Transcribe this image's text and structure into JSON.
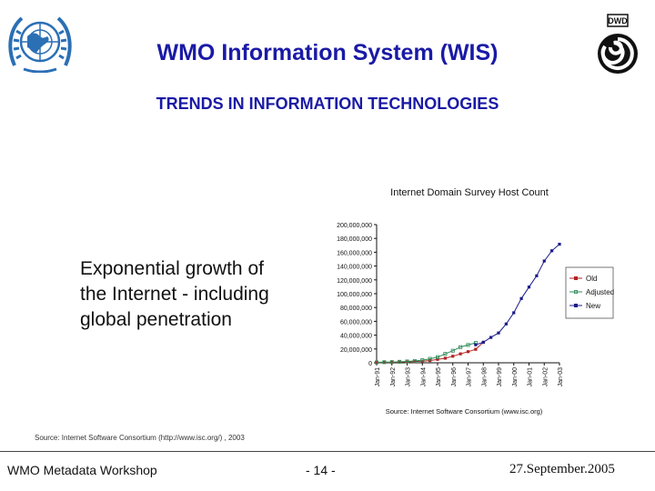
{
  "header": {
    "title": "WMO Information System (WIS)",
    "subtitle": "TRENDS IN INFORMATION TECHNOLOGIES",
    "left_logo_icon": "wmo-emblem-icon",
    "right_logo_icon": "dwd-logo-icon",
    "right_logo_text": "DWD"
  },
  "body_text": [
    "Exponential growth of",
    "the Internet - including",
    "global penetration"
  ],
  "source_note": "Source: Internet Software Consortium (http://www.isc.org/) , 2003",
  "footer": {
    "left": "WMO Metadata Workshop",
    "center": "- 14 -",
    "right": "27.September.2005"
  },
  "chart_data": {
    "type": "line",
    "title": "Internet Domain Survey Host Count",
    "source": "Source: Internet Software Consortium (www.isc.org)",
    "ylim": [
      0,
      200000000
    ],
    "y_ticks": [
      "0",
      "20,000,000",
      "40,000,000",
      "60,000,000",
      "80,000,000",
      "100,000,000",
      "120,000,000",
      "140,000,000",
      "160,000,000",
      "180,000,000",
      "200,000,000"
    ],
    "x_ticks": [
      "Jan-91",
      "Jan-92",
      "Jan-93",
      "Jan-94",
      "Jan-95",
      "Jan-96",
      "Jan-97",
      "Jan-98",
      "Jan-99",
      "Jan-00",
      "Jan-01",
      "Jan-02",
      "Jan-03"
    ],
    "xlim": [
      1991,
      2003
    ],
    "legend_position": "right",
    "colors": {
      "Old": "#b22222",
      "Adjusted": "#2e8b57",
      "New": "#1a1a8c"
    },
    "series": [
      {
        "name": "Old",
        "x": [
          1991.0,
          1991.5,
          1992.0,
          1992.5,
          1993.0,
          1993.5,
          1994.0,
          1994.5,
          1995.0,
          1995.5,
          1996.0,
          1996.5,
          1997.0,
          1997.5,
          1998.0
        ],
        "values": [
          400000,
          500000,
          700000,
          1000000,
          1300000,
          1800000,
          2200000,
          3200000,
          4900000,
          6600000,
          9500000,
          12900000,
          16100000,
          19500000,
          29700000
        ]
      },
      {
        "name": "Adjusted",
        "x": [
          1991.0,
          1991.5,
          1992.0,
          1992.5,
          1993.0,
          1993.5,
          1994.0,
          1994.5,
          1995.0,
          1995.5,
          1996.0,
          1996.5,
          1997.0,
          1997.5
        ],
        "values": [
          600000,
          900000,
          1100000,
          1500000,
          2000000,
          2700000,
          3800000,
          5800000,
          8200000,
          12900000,
          17500000,
          22700000,
          25800000,
          28900000
        ]
      },
      {
        "name": "New",
        "x": [
          1997.5,
          1998.0,
          1998.5,
          1999.0,
          1999.5,
          2000.0,
          2000.5,
          2001.0,
          2001.5,
          2002.0,
          2002.5,
          2003.0
        ],
        "values": [
          26100000,
          29700000,
          36700000,
          43200000,
          56200000,
          72400000,
          93000000,
          109600000,
          125900000,
          147300000,
          162100000,
          171600000
        ]
      }
    ]
  }
}
